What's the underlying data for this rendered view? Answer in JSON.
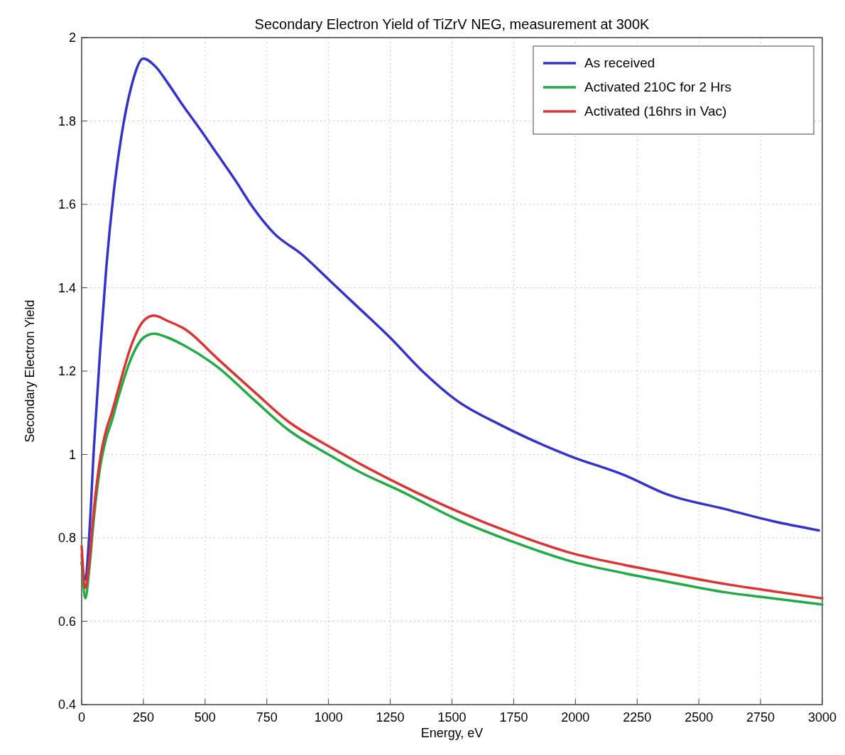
{
  "chart_data": {
    "type": "line",
    "title": "Secondary Electron Yield of TiZrV NEG, measurement at 300K",
    "xlabel": "Energy, eV",
    "ylabel": "Secondary Electron Yield",
    "xlim": [
      0,
      3000
    ],
    "xticks": [
      0,
      250,
      500,
      750,
      1000,
      1250,
      1500,
      1750,
      2000,
      2250,
      2500,
      2750,
      3000
    ],
    "ylim": [
      0.4,
      2
    ],
    "yticks": [
      0.4,
      0.6,
      0.8,
      1,
      1.2,
      1.4,
      1.6,
      1.8,
      2
    ],
    "grid": true,
    "legend": "top right",
    "line_style": "solid",
    "marker": "none",
    "series": [
      {
        "name": "As received",
        "color": "#3333cc",
        "x": [
          0,
          15,
          30,
          50,
          75,
          100,
          130,
          160,
          200,
          250,
          300,
          350,
          407,
          480,
          550,
          620,
          692,
          780,
          892,
          1000,
          1120,
          1250,
          1380,
          1518,
          1700,
          1975,
          2200,
          2373,
          2600,
          2800,
          2986
        ],
        "values": [
          0.74,
          0.7,
          0.8,
          1.02,
          1.25,
          1.45,
          1.63,
          1.76,
          1.88,
          1.95,
          1.93,
          1.89,
          1.84,
          1.78,
          1.72,
          1.66,
          1.594,
          1.53,
          1.48,
          1.42,
          1.353,
          1.28,
          1.2,
          1.13,
          1.07,
          0.997,
          0.95,
          0.904,
          0.87,
          0.84,
          0.818
        ]
      },
      {
        "name": "Activated 210C for 2 Hrs",
        "color": "#22aa44",
        "x": [
          0,
          15,
          30,
          50,
          75,
          100,
          122,
          150,
          200,
          250,
          293,
          350,
          420,
          550,
          700,
          835,
          1000,
          1120,
          1300,
          1518,
          1750,
          1975,
          2200,
          2373,
          2600,
          2800,
          3000
        ],
        "values": [
          0.76,
          0.655,
          0.72,
          0.85,
          0.97,
          1.04,
          1.08,
          1.14,
          1.23,
          1.28,
          1.29,
          1.28,
          1.26,
          1.21,
          1.13,
          1.06,
          1.0,
          0.96,
          0.91,
          0.845,
          0.79,
          0.745,
          0.715,
          0.695,
          0.67,
          0.655,
          0.64
        ]
      },
      {
        "name": "Activated (16hrs in Vac)",
        "color": "#dd3333",
        "x": [
          0,
          15,
          30,
          50,
          75,
          100,
          122,
          150,
          200,
          250,
          293,
          350,
          420,
          550,
          700,
          835,
          1000,
          1120,
          1300,
          1518,
          1750,
          1975,
          2200,
          2373,
          2600,
          2800,
          3000
        ],
        "values": [
          0.78,
          0.68,
          0.74,
          0.87,
          0.99,
          1.06,
          1.1,
          1.16,
          1.26,
          1.32,
          1.333,
          1.32,
          1.3,
          1.23,
          1.15,
          1.08,
          1.02,
          0.98,
          0.925,
          0.865,
          0.81,
          0.765,
          0.735,
          0.715,
          0.69,
          0.672,
          0.655
        ]
      }
    ]
  }
}
